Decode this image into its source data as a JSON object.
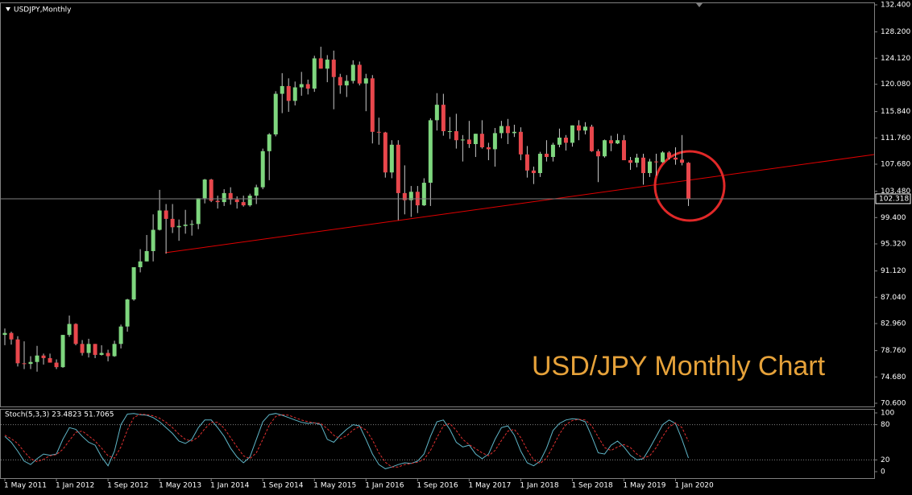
{
  "header": {
    "symbol": "USDJPY,Monthly"
  },
  "annotation": "USD/JPY Monthly Chart",
  "current_price": {
    "value": 102.318,
    "label": "102.318"
  },
  "chart_data": [
    {
      "type": "candlestick",
      "up_color": "#7ed67e",
      "down_color": "#e8474c",
      "wick_color": "#c8c8c8",
      "categories": [
        "1 May 2011",
        null,
        null,
        null,
        null,
        null,
        null,
        null,
        "1 Jan 2012",
        null,
        null,
        null,
        null,
        null,
        null,
        null,
        "1 Sep 2012",
        null,
        null,
        null,
        null,
        null,
        null,
        null,
        "1 May 2013",
        null,
        null,
        null,
        null,
        null,
        null,
        null,
        "1 Jan 2014",
        null,
        null,
        null,
        null,
        null,
        null,
        null,
        "1 Sep 2014",
        null,
        null,
        null,
        null,
        null,
        null,
        null,
        "1 May 2015",
        null,
        null,
        null,
        null,
        null,
        null,
        null,
        "1 Jan 2016",
        null,
        null,
        null,
        null,
        null,
        null,
        null,
        "1 Sep 2016",
        null,
        null,
        null,
        null,
        null,
        null,
        null,
        "1 May 2017",
        null,
        null,
        null,
        null,
        null,
        null,
        null,
        "1 Jan 2018",
        null,
        null,
        null,
        null,
        null,
        null,
        null,
        "1 Sep 2018",
        null,
        null,
        null,
        null,
        null,
        null,
        null,
        "1 May 2019",
        null,
        null,
        null,
        null,
        null,
        null,
        null,
        "1 Jan 2020",
        null,
        null
      ],
      "open": [
        81.2,
        81.5,
        80.5,
        76.8,
        76.7,
        77.0,
        78.0,
        77.6,
        76.9,
        76.2,
        81.2,
        82.9,
        79.8,
        78.4,
        79.8,
        78.1,
        78.4,
        77.9,
        79.8,
        82.5,
        86.7,
        91.7,
        92.6,
        94.2,
        97.5,
        100.5,
        99.2,
        97.9,
        98.1,
        98.3,
        98.4,
        102.4,
        105.3,
        102.0,
        101.8,
        103.2,
        102.2,
        101.8,
        101.3,
        102.8,
        104.1,
        109.7,
        112.3,
        118.6,
        119.8,
        117.5,
        119.6,
        120.1,
        119.4,
        124.1,
        122.5,
        123.9,
        121.2,
        119.9,
        120.6,
        123.1,
        120.2,
        121.0,
        112.7,
        112.6,
        106.4,
        110.7,
        103.2,
        102.1,
        103.4,
        101.3,
        104.8,
        114.5,
        116.9,
        112.8,
        112.8,
        111.4,
        111.5,
        110.8,
        112.4,
        110.3,
        110.0,
        112.5,
        113.6,
        112.5,
        112.7,
        109.2,
        106.7,
        106.3,
        109.3,
        108.8,
        110.7,
        111.8,
        111.0,
        113.7,
        112.9,
        113.5,
        109.7,
        108.9,
        111.4,
        110.9,
        111.4,
        108.3,
        107.9,
        108.7,
        106.3,
        108.1,
        108.0,
        109.5,
        108.7,
        108.4,
        107.9
      ],
      "high": [
        82.2,
        81.7,
        81.0,
        80.2,
        77.9,
        79.5,
        78.3,
        78.3,
        77.4,
        81.2,
        84.2,
        83.0,
        80.4,
        80.6,
        79.8,
        79.6,
        78.9,
        80.3,
        82.8,
        86.8,
        91.7,
        94.5,
        96.7,
        99.9,
        103.7,
        101.5,
        101.5,
        99.1,
        100.6,
        99.0,
        102.4,
        105.4,
        105.4,
        102.8,
        103.8,
        104.1,
        102.7,
        102.8,
        103.1,
        104.5,
        110.1,
        112.5,
        119.0,
        121.8,
        121.0,
        120.5,
        122.0,
        120.8,
        124.5,
        125.9,
        124.6,
        125.3,
        121.7,
        121.5,
        123.8,
        123.6,
        121.7,
        121.5,
        114.9,
        112.7,
        111.4,
        111.4,
        107.5,
        104.3,
        104.3,
        105.5,
        114.8,
        118.7,
        118.6,
        115.0,
        115.5,
        112.2,
        114.4,
        112.4,
        114.5,
        111.0,
        113.3,
        114.4,
        114.7,
        113.8,
        113.4,
        110.5,
        107.3,
        109.6,
        111.4,
        111.0,
        113.2,
        112.2,
        113.7,
        114.5,
        114.2,
        113.8,
        110.0,
        111.5,
        112.1,
        112.4,
        112.2,
        108.8,
        109.3,
        109.3,
        108.5,
        109.3,
        109.7,
        109.7,
        110.3,
        112.2,
        108.0
      ],
      "low": [
        79.6,
        79.7,
        76.3,
        75.9,
        75.9,
        75.5,
        76.6,
        76.9,
        75.9,
        76.1,
        80.9,
        79.6,
        78.0,
        77.7,
        77.6,
        78.0,
        77.1,
        77.8,
        79.1,
        81.7,
        86.5,
        90.9,
        92.6,
        92.6,
        97.4,
        93.8,
        97.0,
        95.8,
        96.9,
        96.6,
        97.6,
        101.6,
        101.8,
        100.8,
        101.2,
        101.4,
        100.8,
        101.1,
        101.1,
        101.5,
        103.8,
        105.2,
        112.0,
        115.6,
        115.8,
        116.8,
        118.3,
        118.5,
        118.9,
        122.5,
        120.4,
        116.2,
        118.6,
        118.1,
        120.2,
        119.9,
        115.9,
        110.9,
        110.7,
        105.6,
        105.5,
        99.0,
        99.9,
        99.5,
        100.1,
        101.2,
        101.2,
        112.9,
        112.1,
        111.6,
        110.1,
        108.1,
        110.2,
        108.8,
        110.1,
        108.3,
        107.3,
        111.7,
        110.8,
        111.9,
        108.3,
        105.6,
        104.6,
        105.7,
        108.1,
        108.1,
        110.3,
        109.8,
        110.4,
        111.4,
        112.3,
        109.6,
        104.9,
        108.7,
        109.7,
        110.8,
        108.3,
        106.8,
        107.2,
        104.5,
        105.7,
        105.9,
        107.9,
        108.4,
        107.6,
        107.5,
        101.2
      ],
      "close": [
        81.5,
        80.5,
        76.8,
        76.7,
        77.0,
        78.0,
        77.6,
        76.9,
        76.2,
        81.2,
        82.9,
        79.8,
        78.4,
        79.8,
        78.1,
        78.4,
        77.9,
        79.8,
        82.5,
        86.7,
        91.7,
        92.6,
        94.2,
        97.5,
        100.5,
        99.2,
        97.9,
        98.1,
        98.3,
        98.4,
        102.4,
        105.3,
        102.0,
        101.8,
        103.2,
        102.2,
        101.8,
        101.3,
        102.8,
        104.1,
        109.7,
        112.3,
        118.6,
        119.8,
        117.5,
        119.6,
        120.1,
        119.4,
        124.1,
        122.5,
        123.9,
        121.2,
        119.9,
        120.6,
        123.1,
        120.2,
        121.0,
        112.7,
        112.6,
        106.4,
        110.7,
        103.2,
        102.1,
        103.4,
        101.3,
        104.8,
        114.5,
        116.9,
        112.8,
        112.8,
        111.4,
        111.5,
        110.8,
        112.4,
        110.3,
        110.0,
        112.5,
        113.6,
        112.5,
        112.7,
        109.2,
        106.7,
        106.3,
        109.3,
        108.8,
        110.7,
        111.8,
        111.0,
        113.7,
        112.9,
        113.5,
        109.7,
        108.9,
        111.4,
        110.9,
        111.4,
        108.3,
        107.9,
        108.7,
        106.3,
        108.1,
        108.0,
        109.5,
        108.7,
        108.4,
        107.9,
        102.318
      ],
      "ylim": [
        70.6,
        132.4
      ],
      "yticks": [
        {
          "value": 70.6,
          "label": "70.600"
        },
        {
          "value": 74.68,
          "label": "74.680"
        },
        {
          "value": 78.76,
          "label": "78.760"
        },
        {
          "value": 82.96,
          "label": "82.960"
        },
        {
          "value": 87.04,
          "label": "87.040"
        },
        {
          "value": 91.12,
          "label": "91.120"
        },
        {
          "value": 95.32,
          "label": "95.320"
        },
        {
          "value": 99.4,
          "label": "99.400"
        },
        {
          "value": 103.48,
          "label": "103.480"
        },
        {
          "value": 107.68,
          "label": "107.680"
        },
        {
          "value": 111.76,
          "label": "111.760"
        },
        {
          "value": 115.84,
          "label": "115.840"
        },
        {
          "value": 120.08,
          "label": "120.080"
        },
        {
          "value": 124.12,
          "label": "124.120"
        },
        {
          "value": 128.2,
          "label": "128.200"
        },
        {
          "value": 132.4,
          "label": "132.400"
        }
      ]
    },
    {
      "type": "line",
      "title": "Stoch(5,3,3) 23.4823 51.7065",
      "ylim": [
        0,
        100
      ],
      "yticks": [
        0,
        20,
        80,
        100
      ],
      "series": [
        {
          "color": "#5fb6c8",
          "dash": false,
          "values": [
            60,
            50,
            35,
            18,
            12,
            22,
            30,
            28,
            30,
            55,
            75,
            72,
            60,
            50,
            45,
            25,
            10,
            35,
            80,
            98,
            99,
            97,
            96,
            92,
            85,
            75,
            65,
            52,
            48,
            55,
            75,
            88,
            88,
            75,
            60,
            40,
            25,
            15,
            25,
            55,
            85,
            97,
            99,
            96,
            92,
            88,
            84,
            82,
            83,
            80,
            55,
            50,
            62,
            72,
            80,
            78,
            55,
            30,
            12,
            5,
            8,
            12,
            15,
            14,
            18,
            30,
            60,
            85,
            88,
            72,
            50,
            42,
            45,
            30,
            22,
            30,
            55,
            75,
            78,
            62,
            35,
            15,
            10,
            18,
            40,
            70,
            82,
            88,
            90,
            89,
            85,
            60,
            32,
            30,
            45,
            52,
            42,
            28,
            20,
            22,
            40,
            60,
            80,
            88,
            82,
            55,
            23.4823
          ]
        },
        {
          "color": "#e03030",
          "dash": true,
          "values": [
            62,
            56,
            48,
            34,
            22,
            17,
            21,
            27,
            29,
            38,
            53,
            67,
            69,
            61,
            52,
            40,
            27,
            23,
            42,
            71,
            92,
            98,
            97,
            95,
            91,
            84,
            75,
            64,
            55,
            52,
            59,
            73,
            84,
            84,
            74,
            58,
            42,
            27,
            22,
            32,
            55,
            79,
            94,
            97,
            96,
            92,
            88,
            85,
            83,
            82,
            73,
            62,
            56,
            61,
            71,
            77,
            71,
            54,
            32,
            16,
            8,
            8,
            12,
            14,
            16,
            21,
            36,
            58,
            78,
            82,
            70,
            55,
            46,
            39,
            32,
            27,
            36,
            53,
            69,
            72,
            58,
            37,
            20,
            14,
            23,
            43,
            64,
            80,
            87,
            89,
            88,
            78,
            59,
            41,
            36,
            42,
            46,
            41,
            30,
            23,
            27,
            41,
            60,
            76,
            83,
            75,
            51.7065
          ]
        }
      ]
    }
  ]
}
